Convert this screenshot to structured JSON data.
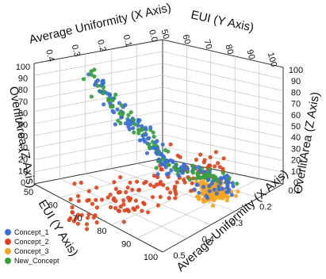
{
  "chart_data": {
    "type": "scatter",
    "title": "",
    "axes": {
      "x": {
        "label": "Average Uniformity (X Axis)",
        "range": [
          0.0,
          0.5
        ],
        "top_ticks": [
          "0.4",
          "0.3",
          "0.2",
          "0.1",
          "0.0"
        ],
        "bottom_ticks": [
          "0.1",
          "0.2",
          "0.3",
          "0.4",
          "0.5"
        ]
      },
      "y": {
        "label": "EUI (Y Axis)",
        "range": [
          50,
          100
        ],
        "top_ticks": [
          "50",
          "60",
          "70",
          "80",
          "90",
          "100"
        ],
        "left_ticks": [
          "50",
          "60",
          "70",
          "80",
          "90",
          "100"
        ]
      },
      "z": {
        "label": "OverlitArea (Z Axis)",
        "range": [
          0,
          100
        ],
        "left_ticks": [
          "100",
          "90",
          "80",
          "70",
          "60",
          "50",
          "40",
          "30",
          "20",
          "10",
          "0"
        ],
        "right_ticks": [
          "100",
          "90",
          "80",
          "70",
          "60",
          "50",
          "40",
          "30",
          "20",
          "10",
          "0"
        ]
      }
    },
    "grid": true,
    "legend_position": "bottom-left",
    "series": [
      {
        "name": "Concept_1",
        "color": "#3a6fd1"
      },
      {
        "name": "Concept_2",
        "color": "#e0431c"
      },
      {
        "name": "Concept_3",
        "color": "#f7a51c"
      },
      {
        "name": "New_Concept",
        "color": "#36a03c"
      }
    ]
  }
}
